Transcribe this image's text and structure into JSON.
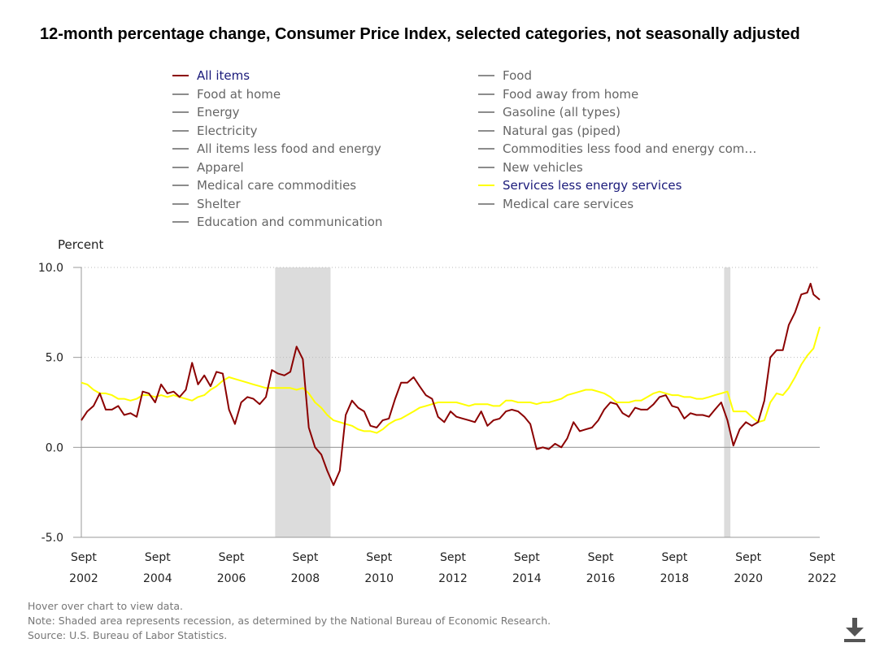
{
  "title": "12-month percentage change, Consumer Price Index, selected categories, not seasonally adjusted",
  "legend": {
    "left": [
      {
        "label": "All items",
        "color": "#8b0000",
        "active": true
      },
      {
        "label": "Food at home",
        "color": "#8c8c8c",
        "active": false
      },
      {
        "label": "Energy",
        "color": "#8c8c8c",
        "active": false
      },
      {
        "label": "Electricity",
        "color": "#8c8c8c",
        "active": false
      },
      {
        "label": "All items less food and energy",
        "color": "#8c8c8c",
        "active": false
      },
      {
        "label": "Apparel",
        "color": "#8c8c8c",
        "active": false
      },
      {
        "label": "Medical care commodities",
        "color": "#8c8c8c",
        "active": false
      },
      {
        "label": "Shelter",
        "color": "#8c8c8c",
        "active": false
      },
      {
        "label": "Education and communication",
        "color": "#8c8c8c",
        "active": false
      }
    ],
    "right": [
      {
        "label": "Food",
        "color": "#8c8c8c",
        "active": false
      },
      {
        "label": "Food away from home",
        "color": "#8c8c8c",
        "active": false
      },
      {
        "label": "Gasoline (all types)",
        "color": "#8c8c8c",
        "active": false
      },
      {
        "label": "Natural gas (piped)",
        "color": "#8c8c8c",
        "active": false
      },
      {
        "label": "Commodities less food and energy com…",
        "color": "#8c8c8c",
        "active": false
      },
      {
        "label": "New vehicles",
        "color": "#8c8c8c",
        "active": false
      },
      {
        "label": "Services less energy services",
        "color": "#ffff00",
        "active": true
      },
      {
        "label": "Medical care services",
        "color": "#8c8c8c",
        "active": false
      }
    ]
  },
  "chart_data": {
    "type": "line",
    "ylabel": "Percent",
    "ylim": [
      -5,
      10
    ],
    "yticks": [
      {
        "value": -5,
        "label": "-5.0"
      },
      {
        "value": 0,
        "label": "0.0"
      },
      {
        "value": 5,
        "label": "5.0"
      },
      {
        "value": 10,
        "label": "10.0"
      }
    ],
    "xlim": [
      2002.67,
      2022.67
    ],
    "xticks": [
      {
        "value": 2002.67,
        "month": "Sept",
        "year": "2002"
      },
      {
        "value": 2004.67,
        "month": "Sept",
        "year": "2004"
      },
      {
        "value": 2006.67,
        "month": "Sept",
        "year": "2006"
      },
      {
        "value": 2008.67,
        "month": "Sept",
        "year": "2008"
      },
      {
        "value": 2010.67,
        "month": "Sept",
        "year": "2010"
      },
      {
        "value": 2012.67,
        "month": "Sept",
        "year": "2012"
      },
      {
        "value": 2014.67,
        "month": "Sept",
        "year": "2014"
      },
      {
        "value": 2016.67,
        "month": "Sept",
        "year": "2016"
      },
      {
        "value": 2018.67,
        "month": "Sept",
        "year": "2018"
      },
      {
        "value": 2020.67,
        "month": "Sept",
        "year": "2020"
      },
      {
        "value": 2022.67,
        "month": "Sept",
        "year": "2022"
      }
    ],
    "recessions": [
      [
        2007.92,
        2009.42
      ],
      [
        2020.08,
        2020.25
      ]
    ],
    "grid": "dotted-horizontal",
    "series": [
      {
        "name": "All items",
        "color": "#8b0000",
        "points": [
          [
            2002.67,
            1.5
          ],
          [
            2002.83,
            2.0
          ],
          [
            2003.0,
            2.3
          ],
          [
            2003.17,
            3.0
          ],
          [
            2003.33,
            2.1
          ],
          [
            2003.5,
            2.1
          ],
          [
            2003.67,
            2.3
          ],
          [
            2003.83,
            1.8
          ],
          [
            2004.0,
            1.9
          ],
          [
            2004.17,
            1.7
          ],
          [
            2004.33,
            3.1
          ],
          [
            2004.5,
            3.0
          ],
          [
            2004.67,
            2.5
          ],
          [
            2004.83,
            3.5
          ],
          [
            2005.0,
            3.0
          ],
          [
            2005.17,
            3.1
          ],
          [
            2005.33,
            2.8
          ],
          [
            2005.5,
            3.2
          ],
          [
            2005.67,
            4.7
          ],
          [
            2005.83,
            3.5
          ],
          [
            2006.0,
            4.0
          ],
          [
            2006.17,
            3.4
          ],
          [
            2006.33,
            4.2
          ],
          [
            2006.5,
            4.1
          ],
          [
            2006.67,
            2.1
          ],
          [
            2006.83,
            1.3
          ],
          [
            2007.0,
            2.5
          ],
          [
            2007.17,
            2.8
          ],
          [
            2007.33,
            2.7
          ],
          [
            2007.5,
            2.4
          ],
          [
            2007.67,
            2.8
          ],
          [
            2007.83,
            4.3
          ],
          [
            2008.0,
            4.1
          ],
          [
            2008.17,
            4.0
          ],
          [
            2008.33,
            4.2
          ],
          [
            2008.5,
            5.6
          ],
          [
            2008.67,
            4.9
          ],
          [
            2008.83,
            1.1
          ],
          [
            2009.0,
            0.0
          ],
          [
            2009.17,
            -0.4
          ],
          [
            2009.33,
            -1.3
          ],
          [
            2009.5,
            -2.1
          ],
          [
            2009.67,
            -1.3
          ],
          [
            2009.83,
            1.8
          ],
          [
            2010.0,
            2.6
          ],
          [
            2010.17,
            2.2
          ],
          [
            2010.33,
            2.0
          ],
          [
            2010.5,
            1.2
          ],
          [
            2010.67,
            1.1
          ],
          [
            2010.83,
            1.5
          ],
          [
            2011.0,
            1.6
          ],
          [
            2011.17,
            2.7
          ],
          [
            2011.33,
            3.6
          ],
          [
            2011.5,
            3.6
          ],
          [
            2011.67,
            3.9
          ],
          [
            2011.83,
            3.4
          ],
          [
            2012.0,
            2.9
          ],
          [
            2012.17,
            2.7
          ],
          [
            2012.33,
            1.7
          ],
          [
            2012.5,
            1.4
          ],
          [
            2012.67,
            2.0
          ],
          [
            2012.83,
            1.7
          ],
          [
            2013.0,
            1.6
          ],
          [
            2013.17,
            1.5
          ],
          [
            2013.33,
            1.4
          ],
          [
            2013.5,
            2.0
          ],
          [
            2013.67,
            1.2
          ],
          [
            2013.83,
            1.5
          ],
          [
            2014.0,
            1.6
          ],
          [
            2014.17,
            2.0
          ],
          [
            2014.33,
            2.1
          ],
          [
            2014.5,
            2.0
          ],
          [
            2014.67,
            1.7
          ],
          [
            2014.83,
            1.3
          ],
          [
            2015.0,
            -0.1
          ],
          [
            2015.17,
            0.0
          ],
          [
            2015.33,
            -0.1
          ],
          [
            2015.5,
            0.2
          ],
          [
            2015.67,
            0.0
          ],
          [
            2015.83,
            0.5
          ],
          [
            2016.0,
            1.4
          ],
          [
            2016.17,
            0.9
          ],
          [
            2016.33,
            1.0
          ],
          [
            2016.5,
            1.1
          ],
          [
            2016.67,
            1.5
          ],
          [
            2016.83,
            2.1
          ],
          [
            2017.0,
            2.5
          ],
          [
            2017.17,
            2.4
          ],
          [
            2017.33,
            1.9
          ],
          [
            2017.5,
            1.7
          ],
          [
            2017.67,
            2.2
          ],
          [
            2017.83,
            2.1
          ],
          [
            2018.0,
            2.1
          ],
          [
            2018.17,
            2.4
          ],
          [
            2018.33,
            2.8
          ],
          [
            2018.5,
            2.9
          ],
          [
            2018.67,
            2.3
          ],
          [
            2018.83,
            2.2
          ],
          [
            2019.0,
            1.6
          ],
          [
            2019.17,
            1.9
          ],
          [
            2019.33,
            1.8
          ],
          [
            2019.5,
            1.8
          ],
          [
            2019.67,
            1.7
          ],
          [
            2019.83,
            2.1
          ],
          [
            2020.0,
            2.5
          ],
          [
            2020.17,
            1.5
          ],
          [
            2020.33,
            0.1
          ],
          [
            2020.5,
            1.0
          ],
          [
            2020.67,
            1.4
          ],
          [
            2020.83,
            1.2
          ],
          [
            2021.0,
            1.4
          ],
          [
            2021.17,
            2.6
          ],
          [
            2021.33,
            5.0
          ],
          [
            2021.5,
            5.4
          ],
          [
            2021.67,
            5.4
          ],
          [
            2021.83,
            6.8
          ],
          [
            2022.0,
            7.5
          ],
          [
            2022.17,
            8.5
          ],
          [
            2022.33,
            8.6
          ],
          [
            2022.42,
            9.1
          ],
          [
            2022.5,
            8.5
          ],
          [
            2022.67,
            8.2
          ]
        ]
      },
      {
        "name": "Services less energy services",
        "color": "#ffff00",
        "points": [
          [
            2002.67,
            3.6
          ],
          [
            2002.83,
            3.5
          ],
          [
            2003.0,
            3.2
          ],
          [
            2003.17,
            3.0
          ],
          [
            2003.33,
            3.0
          ],
          [
            2003.5,
            2.9
          ],
          [
            2003.67,
            2.7
          ],
          [
            2003.83,
            2.7
          ],
          [
            2004.0,
            2.6
          ],
          [
            2004.17,
            2.7
          ],
          [
            2004.33,
            2.9
          ],
          [
            2004.5,
            2.9
          ],
          [
            2004.67,
            2.8
          ],
          [
            2004.83,
            2.9
          ],
          [
            2005.0,
            2.8
          ],
          [
            2005.17,
            2.9
          ],
          [
            2005.33,
            2.8
          ],
          [
            2005.5,
            2.7
          ],
          [
            2005.67,
            2.6
          ],
          [
            2005.83,
            2.8
          ],
          [
            2006.0,
            2.9
          ],
          [
            2006.17,
            3.2
          ],
          [
            2006.33,
            3.4
          ],
          [
            2006.5,
            3.7
          ],
          [
            2006.67,
            3.9
          ],
          [
            2006.83,
            3.8
          ],
          [
            2007.0,
            3.7
          ],
          [
            2007.17,
            3.6
          ],
          [
            2007.33,
            3.5
          ],
          [
            2007.5,
            3.4
          ],
          [
            2007.67,
            3.3
          ],
          [
            2007.83,
            3.3
          ],
          [
            2008.0,
            3.3
          ],
          [
            2008.17,
            3.3
          ],
          [
            2008.33,
            3.3
          ],
          [
            2008.5,
            3.2
          ],
          [
            2008.67,
            3.3
          ],
          [
            2008.83,
            3.0
          ],
          [
            2009.0,
            2.5
          ],
          [
            2009.17,
            2.2
          ],
          [
            2009.33,
            1.8
          ],
          [
            2009.5,
            1.5
          ],
          [
            2009.67,
            1.4
          ],
          [
            2009.83,
            1.3
          ],
          [
            2010.0,
            1.2
          ],
          [
            2010.17,
            1.0
          ],
          [
            2010.33,
            0.9
          ],
          [
            2010.5,
            0.9
          ],
          [
            2010.67,
            0.8
          ],
          [
            2010.83,
            1.0
          ],
          [
            2011.0,
            1.3
          ],
          [
            2011.17,
            1.5
          ],
          [
            2011.33,
            1.6
          ],
          [
            2011.5,
            1.8
          ],
          [
            2011.67,
            2.0
          ],
          [
            2011.83,
            2.2
          ],
          [
            2012.0,
            2.3
          ],
          [
            2012.17,
            2.4
          ],
          [
            2012.33,
            2.5
          ],
          [
            2012.5,
            2.5
          ],
          [
            2012.67,
            2.5
          ],
          [
            2012.83,
            2.5
          ],
          [
            2013.0,
            2.4
          ],
          [
            2013.17,
            2.3
          ],
          [
            2013.33,
            2.4
          ],
          [
            2013.5,
            2.4
          ],
          [
            2013.67,
            2.4
          ],
          [
            2013.83,
            2.3
          ],
          [
            2014.0,
            2.3
          ],
          [
            2014.17,
            2.6
          ],
          [
            2014.33,
            2.6
          ],
          [
            2014.5,
            2.5
          ],
          [
            2014.67,
            2.5
          ],
          [
            2014.83,
            2.5
          ],
          [
            2015.0,
            2.4
          ],
          [
            2015.17,
            2.5
          ],
          [
            2015.33,
            2.5
          ],
          [
            2015.5,
            2.6
          ],
          [
            2015.67,
            2.7
          ],
          [
            2015.83,
            2.9
          ],
          [
            2016.0,
            3.0
          ],
          [
            2016.17,
            3.1
          ],
          [
            2016.33,
            3.2
          ],
          [
            2016.5,
            3.2
          ],
          [
            2016.67,
            3.1
          ],
          [
            2016.83,
            3.0
          ],
          [
            2017.0,
            2.8
          ],
          [
            2017.17,
            2.5
          ],
          [
            2017.33,
            2.5
          ],
          [
            2017.5,
            2.5
          ],
          [
            2017.67,
            2.6
          ],
          [
            2017.83,
            2.6
          ],
          [
            2018.0,
            2.8
          ],
          [
            2018.17,
            3.0
          ],
          [
            2018.33,
            3.1
          ],
          [
            2018.5,
            3.0
          ],
          [
            2018.67,
            2.9
          ],
          [
            2018.83,
            2.9
          ],
          [
            2019.0,
            2.8
          ],
          [
            2019.17,
            2.8
          ],
          [
            2019.33,
            2.7
          ],
          [
            2019.5,
            2.7
          ],
          [
            2019.67,
            2.8
          ],
          [
            2019.83,
            2.9
          ],
          [
            2020.0,
            3.0
          ],
          [
            2020.17,
            3.1
          ],
          [
            2020.33,
            2.0
          ],
          [
            2020.5,
            2.0
          ],
          [
            2020.67,
            2.0
          ],
          [
            2020.83,
            1.7
          ],
          [
            2021.0,
            1.4
          ],
          [
            2021.17,
            1.5
          ],
          [
            2021.33,
            2.5
          ],
          [
            2021.5,
            3.0
          ],
          [
            2021.67,
            2.9
          ],
          [
            2021.83,
            3.3
          ],
          [
            2022.0,
            3.9
          ],
          [
            2022.17,
            4.6
          ],
          [
            2022.33,
            5.1
          ],
          [
            2022.5,
            5.5
          ],
          [
            2022.67,
            6.7
          ]
        ]
      }
    ]
  },
  "notes": [
    "Hover over chart to view data.",
    "Note: Shaded area represents recession, as determined by the National Bureau of Economic Research.",
    "Source: U.S. Bureau of Labor Statistics."
  ],
  "download_icon": "download-icon"
}
